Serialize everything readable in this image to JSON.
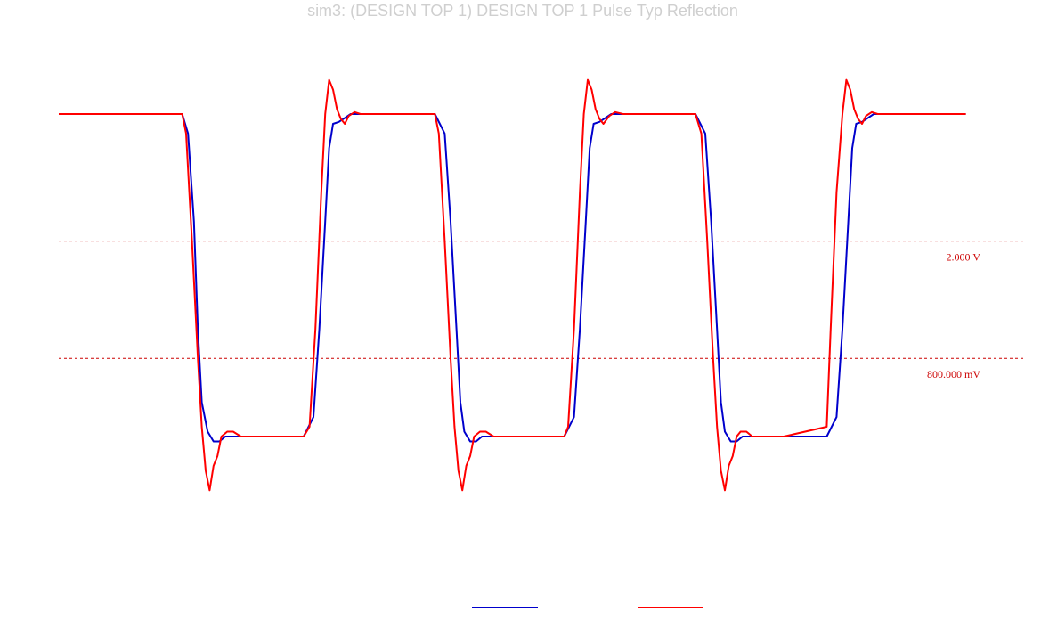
{
  "chart_data": {
    "type": "line",
    "title": "sim3: (DESIGN TOP 1) DESIGN TOP 1 Pulse Typ Reflection",
    "xlabel": "",
    "ylabel": "",
    "ylim": [
      -1.0,
      4.0
    ],
    "grid": false,
    "legend_placement": "bottom-center",
    "colors": {
      "series_a": "#0000cc",
      "series_b": "#ff0000",
      "reference": "#cc0000"
    },
    "reference_lines": [
      {
        "value": 2.0,
        "label": "2.000 V"
      },
      {
        "value": 0.8,
        "label": "800.000 mV"
      }
    ],
    "series": [
      {
        "color": "#0000cc",
        "x": [
          0,
          6.3,
          6.6,
          6.9,
          7.1,
          7.3,
          7.6,
          7.9,
          8.2,
          8.5,
          9.0,
          9.5,
          10.5,
          12.5,
          13.0,
          13.3,
          13.6,
          13.8,
          14.0,
          14.3,
          14.6,
          14.9,
          15.2,
          15.7,
          16.2,
          17.2,
          19.2,
          19.7,
          20.0,
          20.3,
          20.5,
          20.7,
          21.0,
          21.3,
          21.6,
          21.9,
          22.4,
          22.9,
          23.9,
          25.8,
          26.3,
          26.6,
          26.9,
          27.1,
          27.3,
          27.6,
          27.9,
          28.2,
          28.5,
          29.0,
          29.5,
          30.5,
          32.5,
          33.0,
          33.3,
          33.6,
          33.8,
          34.0,
          34.3,
          34.6,
          34.9,
          35.2,
          35.7,
          36.2,
          37.2,
          39.2,
          39.7,
          40.0,
          40.3,
          40.5,
          40.7,
          41.0,
          41.3,
          41.6,
          41.9,
          42.4,
          42.9,
          43.9,
          46.3
        ],
        "y": [
          3.3,
          3.3,
          3.1,
          2.2,
          1.1,
          0.35,
          0.05,
          -0.05,
          -0.05,
          0.0,
          0.0,
          0.0,
          0.0,
          0.0,
          0.2,
          1.1,
          2.2,
          2.95,
          3.2,
          3.22,
          3.26,
          3.3,
          3.3,
          3.3,
          3.3,
          3.3,
          3.3,
          3.1,
          2.2,
          1.1,
          0.35,
          0.05,
          -0.05,
          -0.05,
          0.0,
          0.0,
          0.0,
          0.0,
          0.0,
          0.0,
          0.2,
          1.1,
          2.2,
          2.95,
          3.2,
          3.22,
          3.26,
          3.3,
          3.3,
          3.3,
          3.3,
          3.3,
          3.3,
          3.1,
          2.2,
          1.1,
          0.35,
          0.05,
          -0.05,
          -0.05,
          0.0,
          0.0,
          0.0,
          0.0,
          0.0,
          0.0,
          0.2,
          1.1,
          2.2,
          2.95,
          3.2,
          3.22,
          3.26,
          3.3,
          3.3,
          3.3,
          3.3,
          3.3,
          3.3
        ]
      },
      {
        "color": "#ff0000",
        "x": [
          0,
          6.3,
          6.5,
          6.8,
          7.1,
          7.3,
          7.5,
          7.7,
          7.9,
          8.1,
          8.3,
          8.6,
          8.9,
          9.3,
          9.8,
          10.5,
          12.5,
          12.8,
          13.1,
          13.4,
          13.6,
          13.8,
          14.0,
          14.2,
          14.4,
          14.6,
          14.8,
          15.1,
          15.4,
          15.8,
          16.3,
          17.0,
          19.2,
          19.4,
          19.7,
          20.0,
          20.2,
          20.4,
          20.6,
          20.8,
          21.0,
          21.2,
          21.5,
          21.8,
          22.2,
          22.7,
          23.4,
          25.8,
          26.0,
          26.3,
          26.6,
          26.8,
          27.0,
          27.2,
          27.4,
          27.6,
          27.8,
          28.1,
          28.4,
          28.8,
          29.3,
          30.0,
          32.5,
          32.8,
          33.1,
          33.4,
          33.6,
          33.8,
          34.0,
          34.2,
          34.4,
          34.6,
          34.8,
          35.1,
          35.4,
          35.8,
          36.3,
          37.0,
          39.2,
          39.4,
          39.7,
          40.0,
          40.2,
          40.4,
          40.6,
          40.8,
          41.0,
          41.2,
          41.5,
          41.8,
          42.2,
          42.7,
          43.4,
          46.3
        ],
        "y": [
          3.3,
          3.3,
          3.1,
          2.0,
          0.8,
          0.1,
          -0.35,
          -0.55,
          -0.3,
          -0.2,
          0.0,
          0.05,
          0.05,
          0.0,
          0.0,
          0.0,
          0.0,
          0.1,
          1.1,
          2.5,
          3.3,
          3.65,
          3.55,
          3.35,
          3.25,
          3.2,
          3.28,
          3.32,
          3.3,
          3.3,
          3.3,
          3.3,
          3.3,
          3.1,
          2.0,
          0.8,
          0.1,
          -0.35,
          -0.55,
          -0.3,
          -0.2,
          0.0,
          0.05,
          0.05,
          0.0,
          0.0,
          0.0,
          0.0,
          0.1,
          1.1,
          2.5,
          3.3,
          3.65,
          3.55,
          3.35,
          3.25,
          3.2,
          3.28,
          3.32,
          3.3,
          3.3,
          3.3,
          3.3,
          3.1,
          2.0,
          0.8,
          0.1,
          -0.35,
          -0.55,
          -0.3,
          -0.2,
          0.0,
          0.05,
          0.05,
          0.0,
          0.0,
          0.0,
          0.0,
          0.1,
          1.1,
          2.5,
          3.3,
          3.65,
          3.55,
          3.35,
          3.25,
          3.2,
          3.28,
          3.32,
          3.3,
          3.3,
          3.3,
          3.3,
          3.3
        ]
      }
    ]
  }
}
